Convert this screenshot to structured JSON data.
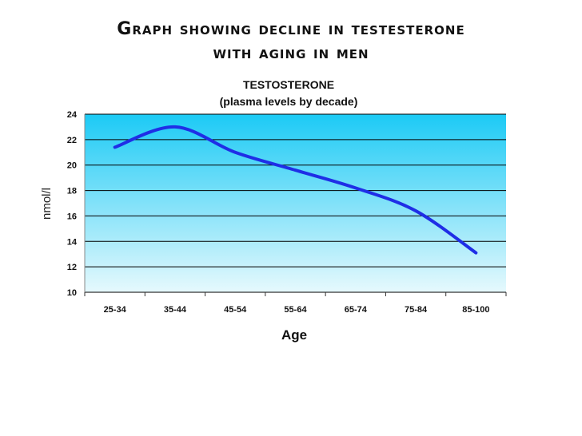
{
  "slide": {
    "title_line1": "Graph showing decline in testesterone",
    "title_line2": "with aging in men"
  },
  "chart_data": {
    "type": "line",
    "title": "TESTOSTERONE",
    "subtitle": "(plasma levels by decade)",
    "xlabel": "Age",
    "ylabel": "nmol/l",
    "categories": [
      "25-34",
      "35-44",
      "45-54",
      "55-64",
      "65-74",
      "75-84",
      "85-100"
    ],
    "series": [
      {
        "values": [
          21.4,
          23.0,
          21.0,
          19.6,
          18.2,
          16.4,
          13.1
        ]
      }
    ],
    "ylim": [
      10,
      24
    ],
    "yticks": [
      10,
      12,
      14,
      16,
      18,
      20,
      22,
      24
    ],
    "grid": true,
    "colors": {
      "line": "#1f2ee6",
      "plot_top": "#1ccaf5",
      "plot_bottom": "#e6f9fd",
      "grid": "#000000"
    }
  }
}
